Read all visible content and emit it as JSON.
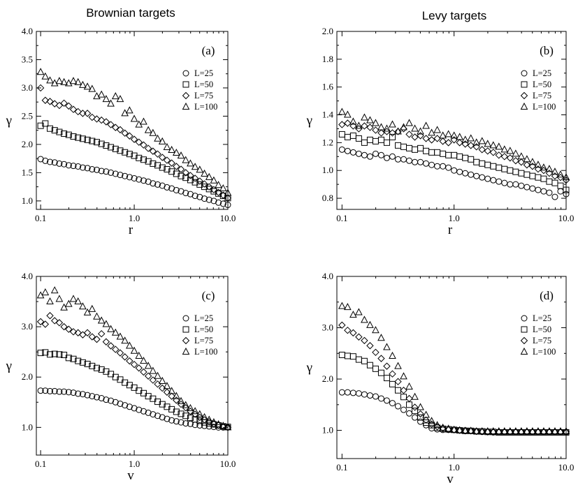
{
  "column_titles": {
    "left": "Brownian targets",
    "right": "Levy targets"
  },
  "chart_data": [
    {
      "type": "scatter",
      "panel": "(a)",
      "xlabel": "r",
      "ylabel": "γ",
      "xscale": "log",
      "xlim": [
        0.09,
        10.0
      ],
      "ylim": [
        0.85,
        4.0
      ],
      "xticks": [
        0.1,
        1.0,
        10.0
      ],
      "xtick_labels": [
        "0.1",
        "1.0",
        "10.0"
      ],
      "yticks": [
        1.0,
        1.5,
        2.0,
        2.5,
        3.0,
        3.5,
        4.0
      ],
      "ytick_labels": [
        "1.0",
        "1.5",
        "2.0",
        "2.5",
        "3.0",
        "3.5",
        "4.0"
      ],
      "legend_position": "right, upper-middle",
      "series": [
        {
          "name": "L=25",
          "marker": "circle",
          "x_range": [
            0.1,
            10.0
          ],
          "n": 41,
          "y": [
            1.74,
            1.71,
            1.69,
            1.68,
            1.66,
            1.65,
            1.63,
            1.62,
            1.61,
            1.59,
            1.58,
            1.56,
            1.55,
            1.53,
            1.52,
            1.5,
            1.48,
            1.46,
            1.44,
            1.42,
            1.4,
            1.38,
            1.36,
            1.34,
            1.31,
            1.29,
            1.27,
            1.24,
            1.22,
            1.19,
            1.17,
            1.14,
            1.12,
            1.09,
            1.07,
            1.04,
            1.02,
            1.0,
            0.97,
            0.95,
            0.93
          ]
        },
        {
          "name": "L=50",
          "marker": "square",
          "x_range": [
            0.1,
            10.0
          ],
          "n": 41,
          "y": [
            2.33,
            2.37,
            2.28,
            2.25,
            2.22,
            2.19,
            2.17,
            2.14,
            2.12,
            2.1,
            2.08,
            2.06,
            2.04,
            2.01,
            1.98,
            1.95,
            1.92,
            1.89,
            1.86,
            1.83,
            1.8,
            1.76,
            1.73,
            1.7,
            1.66,
            1.63,
            1.59,
            1.56,
            1.52,
            1.48,
            1.44,
            1.41,
            1.37,
            1.33,
            1.29,
            1.25,
            1.21,
            1.17,
            1.13,
            1.09,
            1.05
          ]
        },
        {
          "name": "L=75",
          "marker": "diamond",
          "x_range": [
            0.1,
            10.0
          ],
          "n": 41,
          "y": [
            3.0,
            2.78,
            2.76,
            2.72,
            2.69,
            2.73,
            2.68,
            2.62,
            2.58,
            2.55,
            2.55,
            2.48,
            2.45,
            2.43,
            2.4,
            2.35,
            2.3,
            2.26,
            2.2,
            2.15,
            2.09,
            2.04,
            1.99,
            1.93,
            1.88,
            1.83,
            1.77,
            1.72,
            1.67,
            1.61,
            1.56,
            1.5,
            1.45,
            1.4,
            1.35,
            1.3,
            1.25,
            1.2,
            1.15,
            1.1,
            1.05
          ]
        },
        {
          "name": "L=100",
          "marker": "triangle",
          "x_range": [
            0.1,
            10.0
          ],
          "n": 41,
          "y": [
            3.28,
            3.2,
            3.13,
            3.08,
            3.12,
            3.1,
            3.08,
            3.12,
            3.1,
            3.05,
            3.02,
            2.98,
            2.85,
            2.88,
            2.8,
            2.72,
            2.85,
            2.8,
            2.55,
            2.6,
            2.45,
            2.35,
            2.4,
            2.25,
            2.2,
            2.1,
            2.05,
            1.95,
            1.9,
            1.85,
            1.8,
            1.72,
            1.66,
            1.6,
            1.55,
            1.48,
            1.42,
            1.36,
            1.28,
            1.22,
            1.14
          ]
        }
      ]
    },
    {
      "type": "scatter",
      "panel": "(b)",
      "xlabel": "r",
      "ylabel": "γ",
      "xscale": "log",
      "xlim": [
        0.09,
        10.0
      ],
      "ylim": [
        0.72,
        2.0
      ],
      "xticks": [
        0.1,
        1.0,
        10.0
      ],
      "xtick_labels": [
        "0.1",
        "1.0",
        "10.0"
      ],
      "yticks": [
        0.8,
        1.0,
        1.2,
        1.4,
        1.6,
        1.8,
        2.0
      ],
      "ytick_labels": [
        "0.8",
        "1.0",
        "1.2",
        "1.4",
        "1.6",
        "1.8",
        "2.0"
      ],
      "legend_position": "right, upper-middle",
      "series": [
        {
          "name": "L=25",
          "marker": "circle",
          "x_range": [
            0.1,
            10.0
          ],
          "n": 41,
          "y": [
            1.15,
            1.14,
            1.13,
            1.12,
            1.11,
            1.1,
            1.12,
            1.11,
            1.09,
            1.1,
            1.08,
            1.08,
            1.07,
            1.06,
            1.06,
            1.05,
            1.04,
            1.03,
            1.03,
            1.02,
            1.0,
            0.99,
            0.98,
            0.97,
            0.96,
            0.95,
            0.94,
            0.93,
            0.92,
            0.91,
            0.9,
            0.9,
            0.89,
            0.88,
            0.87,
            0.86,
            0.85,
            0.84,
            0.81,
            0.85,
            0.83
          ]
        },
        {
          "name": "L=50",
          "marker": "square",
          "x_range": [
            0.1,
            10.0
          ],
          "n": 41,
          "y": [
            1.26,
            1.24,
            1.25,
            1.23,
            1.2,
            1.22,
            1.21,
            1.22,
            1.2,
            1.24,
            1.18,
            1.17,
            1.16,
            1.15,
            1.16,
            1.14,
            1.13,
            1.13,
            1.12,
            1.11,
            1.11,
            1.1,
            1.09,
            1.08,
            1.06,
            1.05,
            1.04,
            1.03,
            1.02,
            1.01,
            1.0,
            0.99,
            0.98,
            0.97,
            0.96,
            0.95,
            0.94,
            0.92,
            0.91,
            0.89,
            0.86
          ]
        },
        {
          "name": "L=75",
          "marker": "diamond",
          "x_range": [
            0.1,
            10.0
          ],
          "n": 41,
          "y": [
            1.33,
            1.34,
            1.32,
            1.3,
            1.32,
            1.31,
            1.29,
            1.27,
            1.28,
            1.27,
            1.28,
            1.3,
            1.26,
            1.24,
            1.25,
            1.23,
            1.22,
            1.23,
            1.21,
            1.2,
            1.22,
            1.2,
            1.19,
            1.18,
            1.17,
            1.15,
            1.14,
            1.13,
            1.11,
            1.1,
            1.09,
            1.07,
            1.06,
            1.04,
            1.03,
            1.01,
            1.0,
            0.98,
            0.96,
            0.95,
            0.93
          ]
        },
        {
          "name": "L=100",
          "marker": "triangle",
          "x_range": [
            0.1,
            10.0
          ],
          "n": 41,
          "y": [
            1.42,
            1.4,
            1.35,
            1.32,
            1.38,
            1.36,
            1.34,
            1.31,
            1.3,
            1.33,
            1.28,
            1.31,
            1.34,
            1.3,
            1.28,
            1.32,
            1.27,
            1.29,
            1.25,
            1.26,
            1.25,
            1.24,
            1.22,
            1.23,
            1.2,
            1.21,
            1.19,
            1.18,
            1.17,
            1.15,
            1.14,
            1.12,
            1.1,
            1.08,
            1.06,
            1.04,
            1.02,
            1.01,
            0.99,
            0.97,
            0.95
          ]
        }
      ]
    },
    {
      "type": "scatter",
      "panel": "(c)",
      "xlabel": "v",
      "ylabel": "γ",
      "xscale": "log",
      "xlim": [
        0.09,
        10.0
      ],
      "ylim": [
        0.45,
        4.0
      ],
      "xticks": [
        0.1,
        1.0,
        10.0
      ],
      "xtick_labels": [
        "0.1",
        "1.0",
        "10.0"
      ],
      "yticks": [
        1.0,
        2.0,
        3.0,
        4.0
      ],
      "ytick_labels": [
        "1.0",
        "2.0",
        "3.0",
        "4.0"
      ],
      "legend_position": "right, upper-middle",
      "series": [
        {
          "name": "L=25",
          "marker": "circle",
          "x_range": [
            0.1,
            10.0
          ],
          "n": 41,
          "y": [
            1.73,
            1.73,
            1.72,
            1.72,
            1.71,
            1.71,
            1.7,
            1.69,
            1.67,
            1.66,
            1.64,
            1.62,
            1.6,
            1.58,
            1.55,
            1.53,
            1.5,
            1.47,
            1.44,
            1.41,
            1.38,
            1.35,
            1.32,
            1.29,
            1.26,
            1.23,
            1.2,
            1.17,
            1.14,
            1.12,
            1.1,
            1.08,
            1.07,
            1.05,
            1.04,
            1.03,
            1.02,
            1.01,
            1.0,
            1.0,
            1.0
          ]
        },
        {
          "name": "L=50",
          "marker": "square",
          "x_range": [
            0.1,
            10.0
          ],
          "n": 41,
          "y": [
            2.48,
            2.49,
            2.45,
            2.46,
            2.45,
            2.44,
            2.38,
            2.36,
            2.32,
            2.29,
            2.26,
            2.22,
            2.18,
            2.15,
            2.11,
            2.06,
            2.0,
            1.95,
            1.89,
            1.84,
            1.79,
            1.73,
            1.68,
            1.62,
            1.57,
            1.51,
            1.46,
            1.41,
            1.36,
            1.31,
            1.27,
            1.23,
            1.19,
            1.16,
            1.13,
            1.1,
            1.08,
            1.06,
            1.04,
            1.02,
            1.01
          ]
        },
        {
          "name": "L=75",
          "marker": "diamond",
          "x_range": [
            0.1,
            10.0
          ],
          "n": 41,
          "y": [
            3.1,
            3.05,
            3.22,
            3.12,
            3.08,
            3.0,
            2.95,
            2.9,
            2.88,
            2.84,
            2.88,
            2.8,
            2.75,
            2.86,
            2.7,
            2.62,
            2.55,
            2.48,
            2.4,
            2.32,
            2.25,
            2.18,
            2.1,
            2.02,
            1.94,
            1.86,
            1.78,
            1.7,
            1.62,
            1.54,
            1.46,
            1.39,
            1.32,
            1.26,
            1.2,
            1.15,
            1.11,
            1.07,
            1.04,
            1.02,
            1.0
          ]
        },
        {
          "name": "L=100",
          "marker": "triangle",
          "x_range": [
            0.1,
            10.0
          ],
          "n": 41,
          "y": [
            3.62,
            3.68,
            3.5,
            3.72,
            3.55,
            3.38,
            3.45,
            3.55,
            3.5,
            3.4,
            3.28,
            3.35,
            3.2,
            3.12,
            3.05,
            2.95,
            2.88,
            2.8,
            2.72,
            2.62,
            2.52,
            2.42,
            2.32,
            2.22,
            2.12,
            2.02,
            1.92,
            1.82,
            1.72,
            1.62,
            1.52,
            1.44,
            1.38,
            1.32,
            1.26,
            1.2,
            1.15,
            1.1,
            1.06,
            1.03,
            1.0
          ]
        }
      ]
    },
    {
      "type": "scatter",
      "panel": "(d)",
      "xlabel": "v",
      "ylabel": "γ",
      "xscale": "log",
      "xlim": [
        0.09,
        10.0
      ],
      "ylim": [
        0.45,
        4.0
      ],
      "xticks": [
        0.1,
        1.0,
        10.0
      ],
      "xtick_labels": [
        "0.1",
        "1.0",
        "10.0"
      ],
      "yticks": [
        1.0,
        2.0,
        3.0,
        4.0
      ],
      "ytick_labels": [
        "1.0",
        "2.0",
        "3.0",
        "4.0"
      ],
      "legend_position": "right, upper-middle",
      "series": [
        {
          "name": "L=25",
          "marker": "circle",
          "x_range": [
            0.1,
            10.0
          ],
          "n": 41,
          "y": [
            1.74,
            1.74,
            1.73,
            1.72,
            1.7,
            1.68,
            1.66,
            1.62,
            1.58,
            1.53,
            1.47,
            1.4,
            1.33,
            1.25,
            1.17,
            1.1,
            1.04,
            1.02,
            1.01,
            1.01,
            1.01,
            1.0,
            1.0,
            0.99,
            0.98,
            0.97,
            0.97,
            0.96,
            0.96,
            0.96,
            0.96,
            0.96,
            0.96,
            0.96,
            0.96,
            0.96,
            0.96,
            0.96,
            0.96,
            0.96,
            0.96
          ]
        },
        {
          "name": "L=50",
          "marker": "square",
          "x_range": [
            0.1,
            10.0
          ],
          "n": 41,
          "y": [
            2.47,
            2.45,
            2.44,
            2.38,
            2.35,
            2.27,
            2.2,
            2.12,
            2.02,
            1.9,
            1.78,
            1.65,
            1.5,
            1.38,
            1.25,
            1.15,
            1.1,
            1.05,
            1.03,
            1.02,
            1.01,
            1.0,
            0.99,
            0.99,
            0.98,
            0.98,
            0.97,
            0.97,
            0.96,
            0.96,
            0.96,
            0.96,
            0.96,
            0.96,
            0.96,
            0.96,
            0.96,
            0.96,
            0.96,
            0.96,
            0.96
          ]
        },
        {
          "name": "L=75",
          "marker": "diamond",
          "x_range": [
            0.1,
            10.0
          ],
          "n": 41,
          "y": [
            3.05,
            2.95,
            2.9,
            2.82,
            2.75,
            2.65,
            2.52,
            2.4,
            2.25,
            2.1,
            1.95,
            1.78,
            1.62,
            1.45,
            1.32,
            1.2,
            1.12,
            1.07,
            1.04,
            1.02,
            1.01,
            1.0,
            0.99,
            0.99,
            0.98,
            0.98,
            0.97,
            0.97,
            0.97,
            0.97,
            0.97,
            0.97,
            0.97,
            0.97,
            0.97,
            0.97,
            0.97,
            0.97,
            0.97,
            0.97,
            0.97
          ]
        },
        {
          "name": "L=100",
          "marker": "triangle",
          "x_range": [
            0.1,
            10.0
          ],
          "n": 41,
          "y": [
            3.42,
            3.4,
            3.25,
            3.3,
            3.15,
            3.05,
            2.95,
            2.8,
            2.62,
            2.45,
            2.25,
            2.05,
            1.85,
            1.65,
            1.45,
            1.3,
            1.18,
            1.1,
            1.05,
            1.03,
            1.01,
            1.0,
            0.99,
            0.99,
            0.98,
            0.98,
            0.98,
            0.98,
            0.98,
            0.98,
            0.98,
            0.98,
            0.98,
            0.98,
            0.98,
            0.98,
            0.98,
            0.98,
            0.98,
            0.98,
            0.98
          ]
        }
      ]
    }
  ]
}
